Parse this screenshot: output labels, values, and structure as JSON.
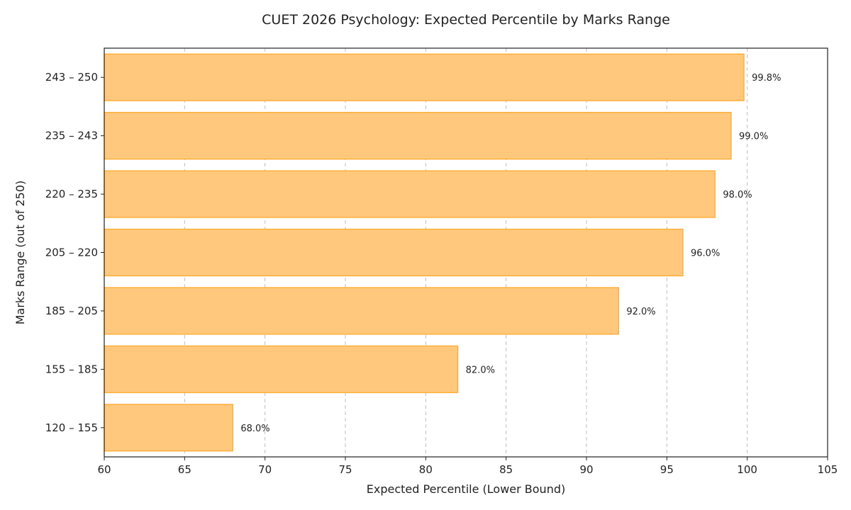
{
  "chart_data": {
    "type": "bar",
    "orientation": "horizontal",
    "title": "CUET 2026 Psychology: Expected Percentile by Marks Range",
    "xlabel": "Expected Percentile (Lower Bound)",
    "ylabel": "Marks Range (out of 250)",
    "xlim": [
      60,
      105
    ],
    "xticks": [
      60,
      65,
      70,
      75,
      80,
      85,
      90,
      95,
      100,
      105
    ],
    "grid": "x-dashed",
    "bar_color": "#FFC87D",
    "bar_edge_color": "#FFA726",
    "categories": [
      "120 – 155",
      "155 – 185",
      "185 – 205",
      "205 – 220",
      "220 – 235",
      "235 – 243",
      "243 – 250"
    ],
    "values": [
      68.0,
      82.0,
      92.0,
      96.0,
      98.0,
      99.0,
      99.8
    ],
    "value_labels": [
      "68.0%",
      "82.0%",
      "92.0%",
      "96.0%",
      "98.0%",
      "99.0%",
      "99.8%"
    ]
  }
}
